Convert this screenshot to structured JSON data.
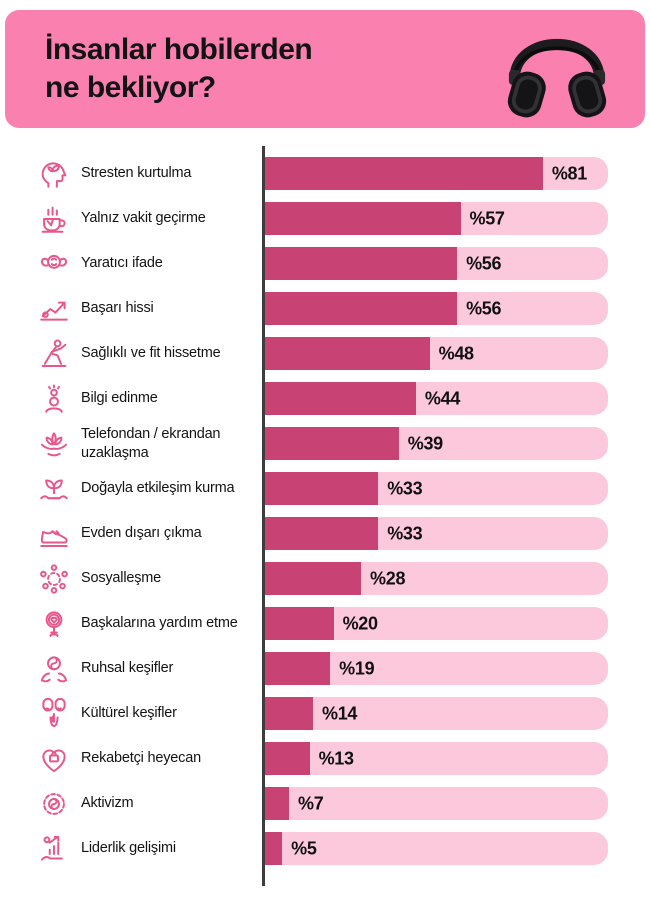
{
  "header": {
    "title_line1": "İnsanlar hobilerden",
    "title_line2": "ne bekliyor?",
    "headphones_icon": "headphones-icon",
    "background_color": "#FA80B0"
  },
  "chart_data": {
    "type": "bar",
    "orientation": "horizontal",
    "title": "İnsanlar hobilerden ne bekliyor?",
    "value_prefix": "%",
    "xlim": [
      0,
      100
    ],
    "grid": false,
    "legend": false,
    "axis_color": "#3D3D3D",
    "bar_color": "#C94274",
    "track_color": "#FCC9DC",
    "icon_color": "#E8578C",
    "value_label_color": "#111111",
    "items": [
      {
        "label": "Stresten kurtulma",
        "value": 81,
        "icon": "mindfulness-head-icon"
      },
      {
        "label": "Yalnız vakit geçirme",
        "value": 57,
        "icon": "coffee-cup-icon"
      },
      {
        "label": "Yaratıcı ifade",
        "value": 56,
        "icon": "brain-strength-icon"
      },
      {
        "label": "Başarı hissi",
        "value": 56,
        "icon": "growth-arrow-icon"
      },
      {
        "label": "Sağlıklı ve fit hissetme",
        "value": 48,
        "icon": "stretching-person-icon"
      },
      {
        "label": "Bilgi edinme",
        "value": 44,
        "icon": "idea-person-icon"
      },
      {
        "label": "Telefondan / ekrandan uzaklaşma",
        "value": 39,
        "icon": "lotus-meditation-icon"
      },
      {
        "label": "Doğayla etkileşim kurma",
        "value": 33,
        "icon": "hands-plant-icon"
      },
      {
        "label": "Evden dışarı çıkma",
        "value": 33,
        "icon": "sneaker-icon"
      },
      {
        "label": "Sosyalleşme",
        "value": 28,
        "icon": "people-circle-icon"
      },
      {
        "label": "Başkalarına yardım etme",
        "value": 20,
        "icon": "hand-mirror-heart-icon"
      },
      {
        "label": "Ruhsal keşifler",
        "value": 19,
        "icon": "hands-yinyang-icon"
      },
      {
        "label": "Kültürel keşifler",
        "value": 14,
        "icon": "theater-masks-icon"
      },
      {
        "label": "Rekabetçi heyecan",
        "value": 13,
        "icon": "heart-briefcase-icon"
      },
      {
        "label": "Aktivizm",
        "value": 7,
        "icon": "activism-wreath-icon"
      },
      {
        "label": "Liderlik gelişimi",
        "value": 5,
        "icon": "hand-chart-icon"
      }
    ]
  }
}
